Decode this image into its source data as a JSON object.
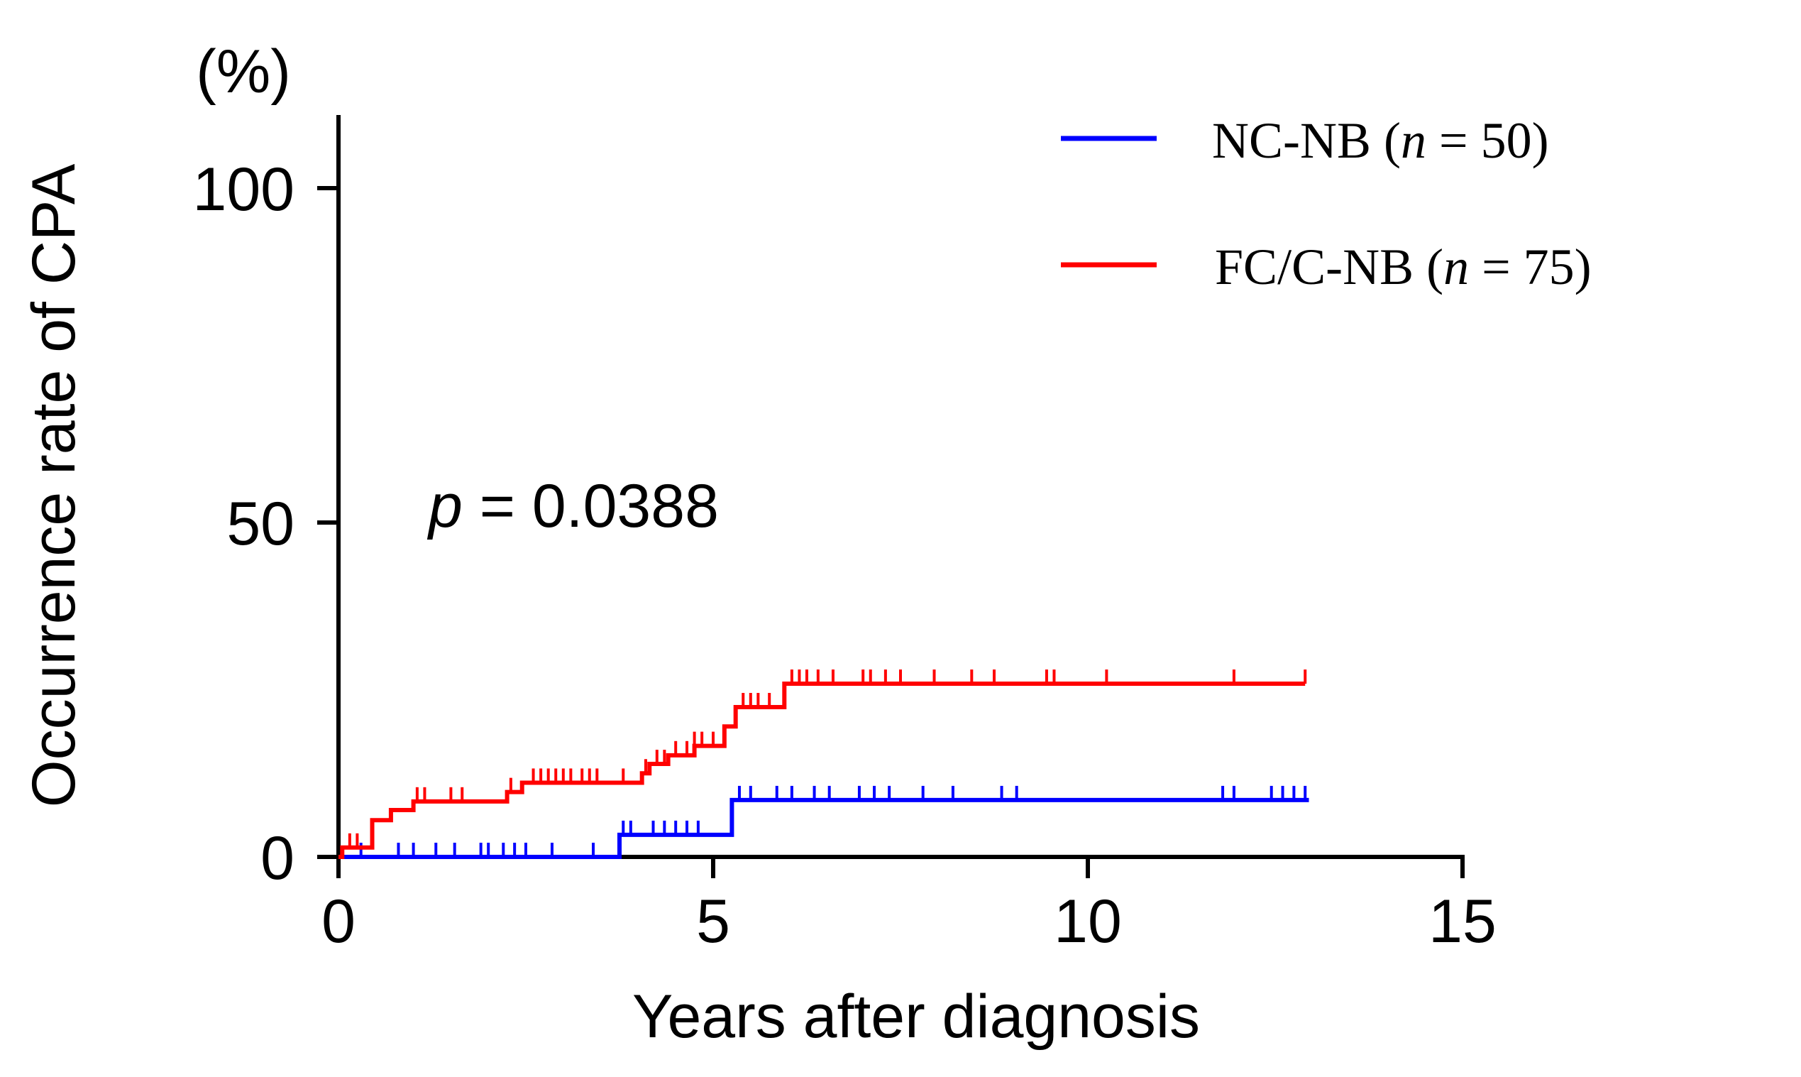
{
  "chart_data": {
    "type": "line",
    "subtype": "kaplan-meier-cumulative-incidence",
    "title": "",
    "xlabel": "Years after diagnosis",
    "ylabel": "Occurrence rate of CPA",
    "yunit": "(%)",
    "xlim": [
      0,
      15
    ],
    "ylim": [
      0,
      110
    ],
    "xticks": [
      0,
      5,
      10,
      15
    ],
    "yticks": [
      0,
      50,
      100
    ],
    "xtick_labels": [
      "0",
      "5",
      "10",
      "15"
    ],
    "ytick_labels": [
      "0",
      "50",
      "100"
    ],
    "grid": false,
    "legend_position": "top-right",
    "annotation": {
      "italic": "p",
      "rest": " = 0.0388"
    },
    "series": [
      {
        "name": "NC-NB",
        "n_label": "n",
        "n_text": " = 50)",
        "label_prefix": "NC-NB (",
        "color": "#0000ff",
        "steps": [
          [
            0,
            0
          ],
          [
            3.75,
            3.3
          ],
          [
            5.25,
            8.5
          ],
          [
            12.95,
            8.5
          ]
        ],
        "censored": [
          0.3,
          0.8,
          1.0,
          1.3,
          1.55,
          1.9,
          2.0,
          2.2,
          2.35,
          2.5,
          2.85,
          3.4,
          3.8,
          3.9,
          4.2,
          4.35,
          4.5,
          4.65,
          4.8,
          5.35,
          5.5,
          5.85,
          6.05,
          6.35,
          6.55,
          6.95,
          7.15,
          7.35,
          7.8,
          8.2,
          8.85,
          9.05,
          11.8,
          11.95,
          12.45,
          12.6,
          12.75,
          12.9
        ]
      },
      {
        "name": "FC/C-NB",
        "n_label": "n",
        "n_text": " = 75)",
        "label_prefix": "FC/C-NB (",
        "color": "#ff0000",
        "steps": [
          [
            0,
            0
          ],
          [
            0.05,
            1.4
          ],
          [
            0.45,
            5.5
          ],
          [
            0.7,
            7.0
          ],
          [
            1.0,
            8.3
          ],
          [
            2.25,
            9.7
          ],
          [
            2.45,
            11.1
          ],
          [
            4.05,
            12.5
          ],
          [
            4.15,
            13.9
          ],
          [
            4.4,
            15.2
          ],
          [
            4.75,
            16.6
          ],
          [
            5.15,
            19.5
          ],
          [
            5.3,
            22.4
          ],
          [
            5.95,
            25.9
          ],
          [
            12.9,
            25.9
          ]
        ],
        "censored": [
          0.15,
          0.25,
          1.05,
          1.15,
          1.5,
          1.65,
          2.3,
          2.6,
          2.7,
          2.8,
          2.9,
          3.0,
          3.1,
          3.25,
          3.35,
          3.45,
          3.8,
          4.1,
          4.25,
          4.35,
          4.5,
          4.65,
          4.75,
          4.85,
          5.0,
          5.4,
          5.5,
          5.6,
          5.75,
          6.05,
          6.15,
          6.25,
          6.4,
          6.6,
          7.0,
          7.1,
          7.3,
          7.5,
          7.95,
          8.45,
          8.75,
          9.45,
          9.55,
          10.25,
          11.95,
          12.9
        ]
      }
    ]
  }
}
